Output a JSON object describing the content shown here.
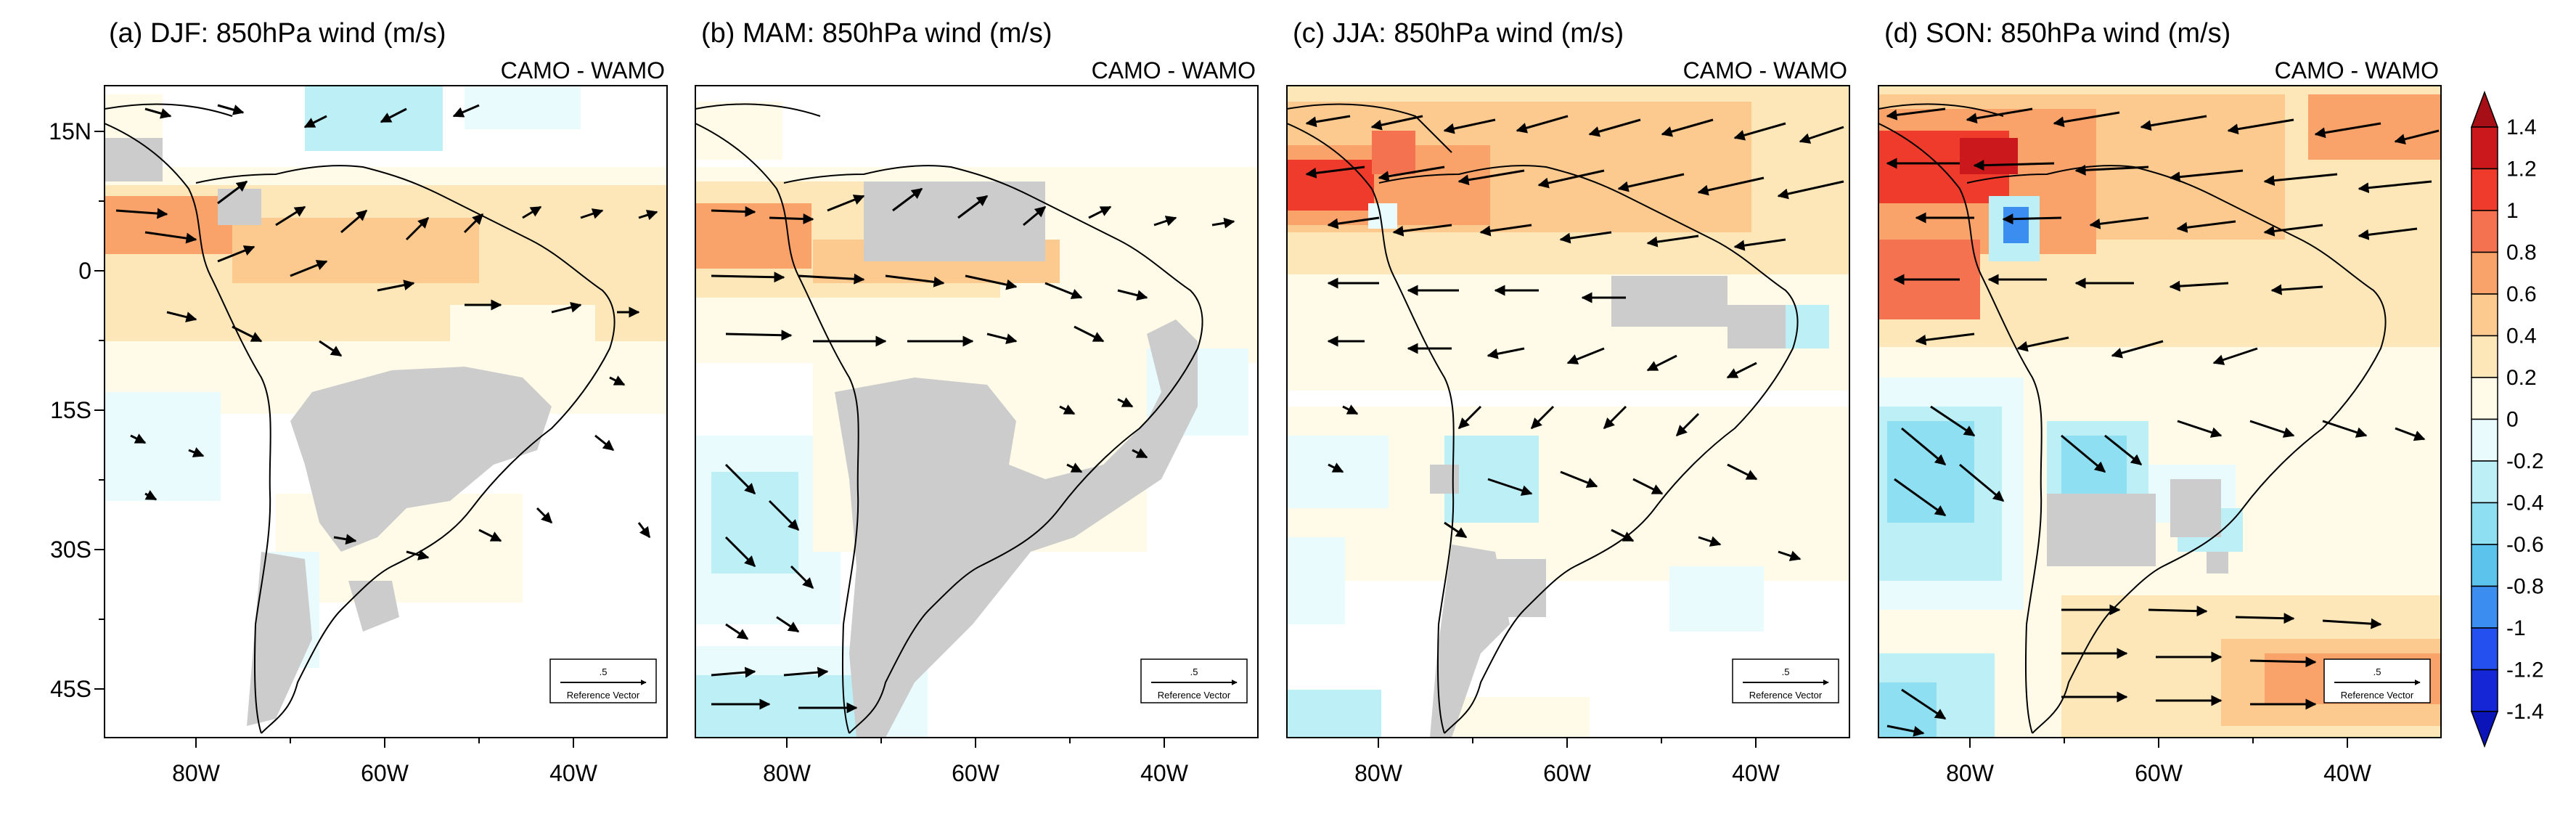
{
  "panels": [
    {
      "id": "a",
      "title": "(a) DJF: 850hPa wind (m/s)",
      "subtitle": "CAMO - WAMO",
      "season": "DJF"
    },
    {
      "id": "b",
      "title": "(b) MAM: 850hPa wind (m/s)",
      "subtitle": "CAMO - WAMO",
      "season": "MAM"
    },
    {
      "id": "c",
      "title": "(c) JJA: 850hPa wind (m/s)",
      "subtitle": "CAMO - WAMO",
      "season": "JJA"
    },
    {
      "id": "d",
      "title": "(d) SON: 850hPa wind (m/s)",
      "subtitle": "CAMO - WAMO",
      "season": "SON"
    }
  ],
  "axes": {
    "lat_labels": [
      "15N",
      "0",
      "15S",
      "30S",
      "45S"
    ],
    "lon_labels": [
      "80W",
      "60W",
      "40W"
    ]
  },
  "reference_vector": {
    "magnitude": ".5",
    "label": "Reference Vector"
  },
  "colorbar": {
    "labels": [
      "1.4",
      "1.2",
      "1",
      "0.8",
      "0.6",
      "0.4",
      "0.2",
      "0",
      "-0.2",
      "-0.4",
      "-0.6",
      "-0.8",
      "-1",
      "-1.2",
      "-1.4"
    ],
    "colors": [
      "#a50f15",
      "#cb181d",
      "#ef3b2c",
      "#f4724f",
      "#f9a36b",
      "#fcc98f",
      "#fde7b9",
      "#fffbe8",
      "#e9fbfd",
      "#bdeff7",
      "#8fdff2",
      "#5cc3ec",
      "#3b8df0",
      "#2550f0",
      "#1426d6",
      "#0a14b8"
    ]
  },
  "colors": {
    "land_nodata": "#cccccc",
    "coastline": "#000000",
    "vector": "#000000"
  }
}
